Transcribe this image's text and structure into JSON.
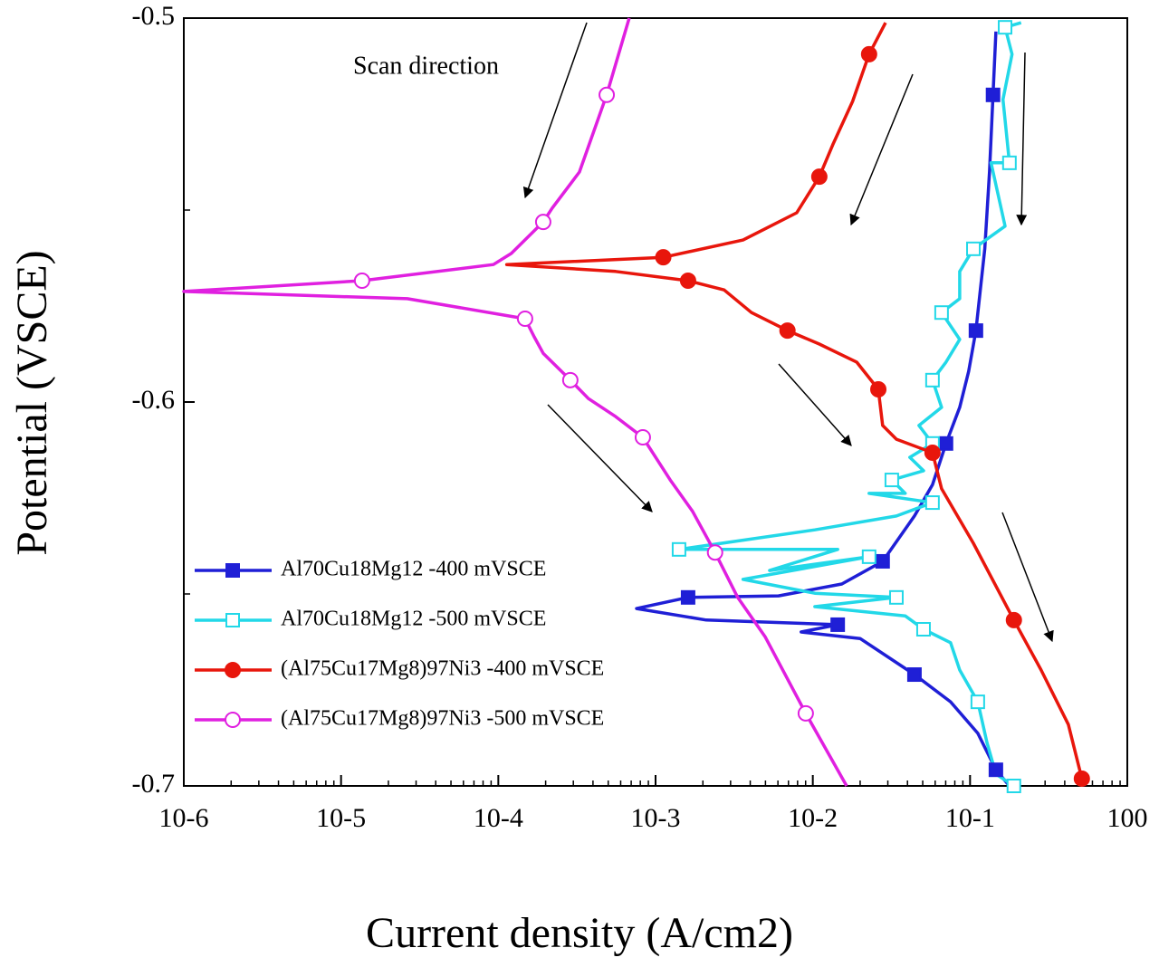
{
  "chart_data": {
    "type": "line",
    "x_label": "Current density (A/cm2)",
    "y_label": "Potential (VSCE)",
    "annotation": "Scan direction",
    "log_x": true,
    "xlim": [
      1e-06,
      1
    ],
    "xticks": [
      {
        "value": 1e-06,
        "label": "10-6"
      },
      {
        "value": 1e-05,
        "label": "10-5"
      },
      {
        "value": 0.0001,
        "label": "10-4"
      },
      {
        "value": 0.001,
        "label": "10-3"
      },
      {
        "value": 0.01,
        "label": "10-2"
      },
      {
        "value": 0.1,
        "label": "10-1"
      },
      {
        "value": 1,
        "label": "100"
      }
    ],
    "ylim": [
      -0.7,
      -0.5
    ],
    "yticks": [
      -0.5,
      -0.6,
      -0.7
    ],
    "legend": "lower left",
    "series": [
      {
        "name": "Al70Cu18Mg12 -400 mVSCE",
        "color": "#1f1fd6",
        "marker": "square",
        "x": [
          0.146,
          0.14,
          0.133,
          0.124,
          0.109,
          0.098,
          0.0859,
          0.0703,
          0.0577,
          0.0443,
          0.0278,
          0.0153,
          0.00605,
          0.00161,
          0.000757,
          0.0021,
          0.0144,
          0.00843,
          0.02,
          0.0443,
          0.0752,
          0.112,
          0.146,
          0.178
        ],
        "values": [
          -0.5035,
          -0.52,
          -0.5401,
          -0.5601,
          -0.5814,
          -0.592,
          -0.6014,
          -0.6108,
          -0.6215,
          -0.6297,
          -0.6415,
          -0.6474,
          -0.6505,
          -0.6509,
          -0.6538,
          -0.6568,
          -0.658,
          -0.6599,
          -0.6616,
          -0.671,
          -0.6781,
          -0.6863,
          -0.6958,
          -0.7
        ]
      },
      {
        "name": "Al70Cu18Mg12 -500 mVSCE",
        "color": "#22d8e8",
        "marker": "square-open",
        "x": [
          0.211,
          0.167,
          0.185,
          0.162,
          0.178,
          0.136,
          0.167,
          0.105,
          0.0859,
          0.0859,
          0.0659,
          0.0859,
          0.0703,
          0.0577,
          0.0659,
          0.0473,
          0.0577,
          0.0414,
          0.0506,
          0.0318,
          0.0387,
          0.0228,
          0.0577,
          0.034,
          0.0103,
          0.00141,
          0.0144,
          0.00531,
          0.0228,
          0.0036,
          0.0103,
          0.034,
          0.0103,
          0.0387,
          0.0506,
          0.0752,
          0.0859,
          0.112,
          0.128,
          0.146,
          0.19
        ],
        "values": [
          -0.5012,
          -0.5024,
          -0.5094,
          -0.5212,
          -0.5377,
          -0.5377,
          -0.5542,
          -0.5601,
          -0.566,
          -0.5731,
          -0.5767,
          -0.5837,
          -0.5896,
          -0.5943,
          -0.6014,
          -0.6061,
          -0.6108,
          -0.6144,
          -0.6179,
          -0.6203,
          -0.6238,
          -0.6238,
          -0.6262,
          -0.6297,
          -0.6333,
          -0.6384,
          -0.6384,
          -0.6439,
          -0.6403,
          -0.6462,
          -0.6498,
          -0.6509,
          -0.6533,
          -0.6557,
          -0.6592,
          -0.6627,
          -0.6698,
          -0.6781,
          -0.6887,
          -0.6969,
          -0.7
        ]
      },
      {
        "name": "(Al75Cu17Mg8)97Ni3 -400 mVSCE",
        "color": "#e8160c",
        "marker": "circle",
        "x": [
          0.029,
          0.0228,
          0.0179,
          0.0134,
          0.011,
          0.0079,
          0.0036,
          0.00112,
          0.000113,
          0.000557,
          0.00161,
          0.00273,
          0.00407,
          0.0069,
          0.011,
          0.019,
          0.0261,
          0.0278,
          0.034,
          0.0577,
          0.0659,
          0.105,
          0.19,
          0.283,
          0.422,
          0.514
        ],
        "values": [
          -0.5012,
          -0.5094,
          -0.5217,
          -0.533,
          -0.5413,
          -0.5507,
          -0.5578,
          -0.5623,
          -0.5642,
          -0.566,
          -0.5684,
          -0.5708,
          -0.5767,
          -0.5814,
          -0.5849,
          -0.5896,
          -0.5967,
          -0.6061,
          -0.6097,
          -0.6132,
          -0.6226,
          -0.6368,
          -0.6568,
          -0.6698,
          -0.684,
          -0.6981
        ]
      },
      {
        "name": "(Al75Cu17Mg8)97Ni3 -500 mVSCE",
        "color": "#e020e0",
        "marker": "circle-open",
        "x": [
          0.00068,
          0.000489,
          0.000328,
          0.00022,
          0.000193,
          0.000121,
          9.31e-05,
          1.36e-05,
          1e-06,
          2.64e-05,
          0.000148,
          0.000169,
          0.000193,
          0.000287,
          0.000374,
          0.000557,
          0.00083,
          0.00124,
          0.00172,
          0.00239,
          0.00333,
          0.00497,
          0.00902,
          0.0164
        ],
        "values": [
          -0.5,
          -0.52,
          -0.5401,
          -0.5495,
          -0.5531,
          -0.5613,
          -0.5642,
          -0.5684,
          -0.5712,
          -0.5731,
          -0.5783,
          -0.583,
          -0.5873,
          -0.5943,
          -0.5991,
          -0.6038,
          -0.6092,
          -0.6203,
          -0.6285,
          -0.6392,
          -0.6509,
          -0.6611,
          -0.6811,
          -0.7
        ]
      }
    ]
  }
}
